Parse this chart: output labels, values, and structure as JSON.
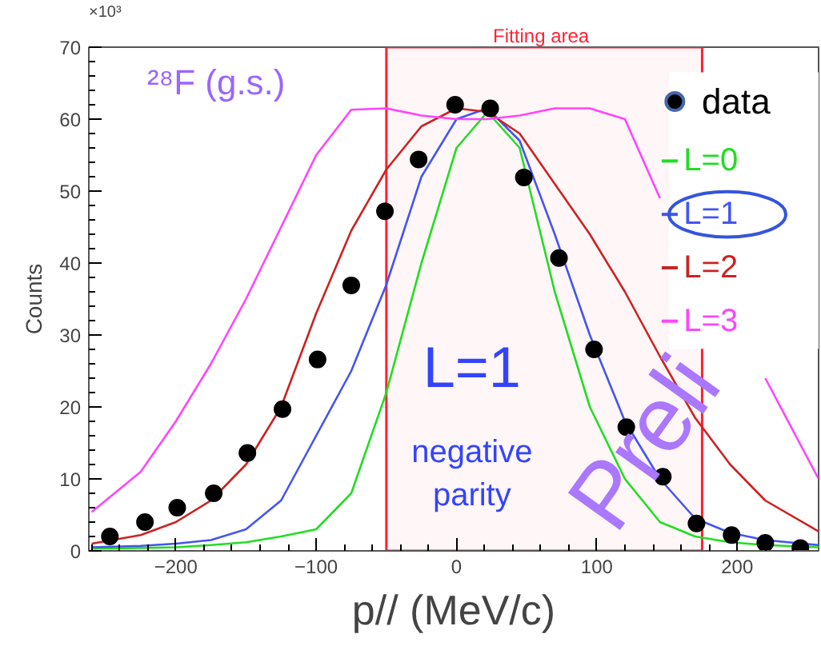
{
  "chart_data": {
    "type": "line",
    "xlabel": "p// (MeV/c)",
    "ylabel": "Counts",
    "xlim": [
      -262,
      258
    ],
    "ylim": [
      0,
      70
    ],
    "xticks": [
      -200,
      -100,
      0,
      100,
      200
    ],
    "yticks": [
      0,
      10,
      20,
      30,
      40,
      50,
      60,
      70
    ],
    "grid": false,
    "legend": "top right",
    "series": [
      {
        "name": "data",
        "type": "scatter",
        "marker": "circle",
        "color": "#000000",
        "x": [
          -247,
          -222,
          -199,
          -173,
          -149,
          -124,
          -99,
          -75,
          -51,
          -27,
          -1,
          24,
          48,
          73,
          98,
          121,
          147,
          171,
          196,
          220,
          245
        ],
        "values": [
          2.0,
          4.0,
          6.0,
          8.0,
          13.6,
          19.7,
          26.6,
          36.9,
          47.2,
          54.4,
          62.0,
          61.5,
          51.9,
          40.7,
          28.0,
          17.2,
          10.3,
          3.8,
          2.2,
          1.1,
          0.4
        ]
      },
      {
        "name": "L=0",
        "color": "#22dd22",
        "x": [
          -260,
          -225,
          -200,
          -175,
          -150,
          -125,
          -100,
          -75,
          -50,
          -25,
          0,
          22,
          45,
          70,
          95,
          120,
          145,
          170,
          195,
          220,
          258
        ],
        "values": [
          0.3,
          0.4,
          0.5,
          0.8,
          1.2,
          2,
          3,
          8,
          22,
          40,
          56,
          61,
          56,
          36,
          20,
          10,
          4,
          2,
          1.2,
          0.8,
          0.5
        ]
      },
      {
        "name": "L=1",
        "color": "#4455ee",
        "x": [
          -260,
          -225,
          -200,
          -175,
          -150,
          -125,
          -100,
          -75,
          -50,
          -25,
          0,
          22,
          45,
          70,
          95,
          120,
          145,
          170,
          195,
          220,
          258
        ],
        "values": [
          0.5,
          0.7,
          1,
          1.5,
          3,
          7,
          16,
          25,
          37,
          52,
          60,
          61.5,
          57,
          44,
          30,
          18,
          10,
          4.5,
          2.5,
          1.5,
          0.8
        ]
      },
      {
        "name": "L=2",
        "color": "#cc2222",
        "x": [
          -260,
          -225,
          -200,
          -175,
          -150,
          -125,
          -100,
          -75,
          -50,
          -25,
          0,
          22,
          45,
          70,
          95,
          120,
          145,
          170,
          195,
          220,
          258
        ],
        "values": [
          1,
          2.2,
          4,
          7,
          12,
          20,
          33,
          44.5,
          53,
          59,
          61.5,
          61,
          58,
          51,
          44,
          36,
          27,
          18.5,
          12,
          7,
          2.7
        ]
      },
      {
        "name": "L=3",
        "color": "#ff44ff",
        "x": [
          -260,
          -225,
          -200,
          -175,
          -150,
          -125,
          -100,
          -75,
          -50,
          -25,
          0,
          22,
          45,
          70,
          95,
          120,
          145,
          170,
          195,
          220,
          258
        ],
        "values": [
          5.4,
          11,
          18,
          26,
          35,
          45,
          55,
          61.3,
          61.5,
          60.5,
          60,
          60,
          60.5,
          61.5,
          61.5,
          60,
          49,
          null,
          null,
          24,
          10
        ]
      }
    ],
    "bands": [
      {
        "axis": "x",
        "from": -50,
        "to": 175,
        "label": "Fitting area",
        "color": "#ff2233"
      }
    ],
    "annotations": [
      "×10³",
      "²⁸F (g.s.)",
      "L=1",
      "negative parity",
      "Preli"
    ]
  }
}
